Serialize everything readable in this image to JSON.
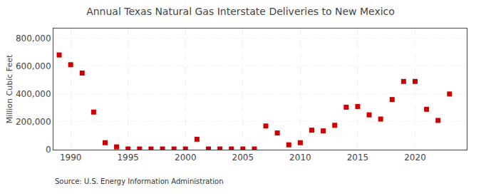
{
  "chart_data": {
    "type": "scatter",
    "title": "Annual Texas Natural Gas Interstate Deliveries to New Mexico",
    "ylabel": "Million Cubic Feet",
    "annotations": [
      "Source: U.S. Energy Information Administration"
    ],
    "x": [
      1989,
      1990,
      1991,
      1992,
      1993,
      1994,
      1995,
      1996,
      1997,
      1998,
      1999,
      2000,
      2001,
      2002,
      2003,
      2004,
      2005,
      2006,
      2007,
      2008,
      2009,
      2010,
      2011,
      2012,
      2013,
      2014,
      2015,
      2016,
      2017,
      2018,
      2019,
      2020,
      2021,
      2022,
      2023
    ],
    "values": [
      680000,
      610000,
      550000,
      270000,
      50000,
      20000,
      5000,
      5000,
      5000,
      5000,
      5000,
      5000,
      75000,
      5000,
      5000,
      5000,
      5000,
      5000,
      170000,
      120000,
      35000,
      50000,
      140000,
      135000,
      175000,
      305000,
      310000,
      250000,
      220000,
      360000,
      490000,
      490000,
      290000,
      210000,
      400000
    ],
    "color": "#cc0000",
    "marker": "square",
    "xlim": [
      1988.5,
      2024.5
    ],
    "xticks": [
      1990,
      1995,
      2000,
      2005,
      2010,
      2015,
      2020
    ],
    "ylim": [
      0,
      870000
    ],
    "yticks": [
      0,
      {
        "value": 200000,
        "label": "200,000"
      },
      {
        "value": 400000,
        "label": "400,000"
      },
      {
        "value": 600000,
        "label": "600,000"
      },
      {
        "value": 800000,
        "label": "800,000"
      }
    ],
    "grid": true
  }
}
